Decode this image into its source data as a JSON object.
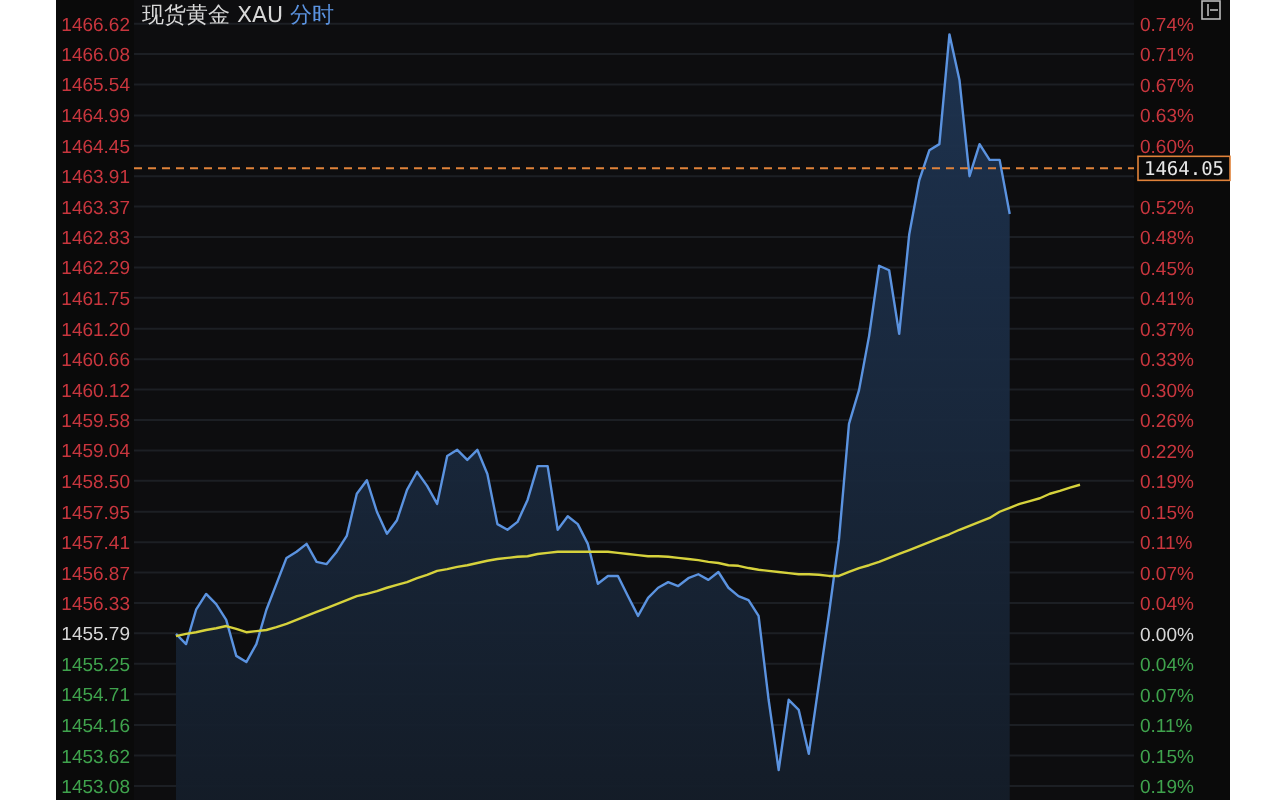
{
  "chart_data": {
    "type": "area",
    "title": "现货黄金 XAU 分时",
    "categories": [
      null,
      null,
      null,
      null,
      null,
      null,
      null,
      null,
      null,
      null,
      null,
      null,
      null,
      null,
      null,
      null,
      null,
      null,
      null,
      null,
      null,
      null,
      null,
      null,
      null,
      null,
      null,
      null,
      null,
      null,
      null,
      null,
      null,
      null,
      null,
      null,
      null,
      null,
      null,
      null,
      null,
      null,
      null,
      null,
      null,
      null,
      null,
      null,
      null,
      null,
      null,
      null,
      null,
      null,
      null,
      null,
      null,
      null,
      null,
      null,
      null,
      null,
      null,
      null,
      null,
      null,
      null,
      null,
      null,
      null,
      null,
      null,
      null,
      null,
      null,
      null,
      null,
      null,
      null,
      null,
      null,
      null,
      null,
      null,
      null,
      null,
      null,
      null,
      null,
      null,
      null
    ],
    "series": [
      {
        "color": "#5b93e0",
        "values": [
          1455.78,
          1455.6,
          1456.21,
          1456.49,
          1456.31,
          1456.03,
          1455.39,
          1455.28,
          1455.6,
          1456.21,
          1456.67,
          1457.13,
          1457.24,
          1457.38,
          1457.06,
          1457.02,
          1457.24,
          1457.52,
          1458.27,
          1458.51,
          1457.95,
          1457.56,
          1457.8,
          1458.34,
          1458.66,
          1458.41,
          1458.09,
          1458.94,
          1459.05,
          1458.87,
          1459.05,
          1458.62,
          1457.73,
          1457.63,
          1457.77,
          1458.16,
          1458.76,
          1458.76,
          1457.63,
          1457.87,
          1457.73,
          1457.38,
          1456.67,
          1456.81,
          1456.81,
          1456.45,
          1456.1,
          1456.42,
          1456.6,
          1456.7,
          1456.63,
          1456.77,
          1456.84,
          1456.74,
          1456.88,
          1456.6,
          1456.45,
          1456.38,
          1456.1,
          1454.61,
          1453.36,
          1454.61,
          1454.43,
          1453.65,
          1454.89,
          1456.13,
          1457.45,
          1459.51,
          1460.11,
          1461.07,
          1462.32,
          1462.24,
          1461.11,
          1462.88,
          1463.84,
          1464.37,
          1464.48,
          1466.43,
          1465.62,
          1463.91,
          1464.48,
          1464.2,
          1464.2,
          1463.24,
          null,
          null,
          null,
          null,
          null,
          null,
          null
        ]
      },
      {
        "type": "line",
        "color": "#d6d23c",
        "values": [
          1455.74,
          1455.78,
          1455.81,
          1455.85,
          1455.88,
          1455.92,
          1455.87,
          1455.81,
          1455.83,
          1455.85,
          1455.9,
          1455.96,
          1456.03,
          1456.1,
          1456.17,
          1456.24,
          1456.31,
          1456.38,
          1456.45,
          1456.49,
          1456.54,
          1456.6,
          1456.65,
          1456.7,
          1456.77,
          1456.83,
          1456.9,
          1456.93,
          1456.97,
          1457.0,
          1457.04,
          1457.08,
          1457.11,
          1457.13,
          1457.15,
          1457.16,
          1457.2,
          1457.22,
          1457.24,
          1457.24,
          1457.24,
          1457.24,
          1457.24,
          1457.24,
          1457.22,
          1457.2,
          1457.18,
          1457.16,
          1457.16,
          1457.15,
          1457.13,
          1457.11,
          1457.09,
          1457.06,
          1457.04,
          1457.0,
          1456.99,
          1456.95,
          1456.92,
          1456.9,
          1456.88,
          1456.86,
          1456.84,
          1456.84,
          1456.83,
          1456.81,
          1456.81,
          1456.88,
          1456.95,
          1457.0,
          1457.06,
          1457.13,
          1457.2,
          1457.27,
          1457.34,
          1457.41,
          1457.48,
          1457.55,
          1457.63,
          1457.7,
          1457.77,
          1457.84,
          1457.95,
          1458.02,
          1458.09,
          1458.14,
          1458.19,
          1458.27,
          1458.32,
          1458.38,
          1458.43
        ]
      }
    ],
    "ylim": [
      1452.83,
      1467.04
    ],
    "yticks": [
      1466.62,
      1466.08,
      1465.54,
      1464.99,
      1464.45,
      1463.91,
      1463.37,
      1462.83,
      1462.29,
      1461.75,
      {
        "value": 1461.2,
        "label": "1461.20"
      },
      1460.66,
      1460.12,
      1459.58,
      1459.04,
      {
        "value": 1458.5,
        "label": "1458.50"
      },
      1457.95,
      1457.41,
      1456.87,
      1456.33,
      1455.79,
      1455.25,
      1454.71,
      1454.16,
      1453.62,
      1453.08
    ],
    "y2lim": [
      -0.203,
      0.773
    ],
    "y2ticks": [
      {
        "value": 0.7439,
        "label": "0.74%"
      },
      {
        "value": 0.7067,
        "label": "0.71%"
      },
      {
        "value": 0.6695,
        "label": "0.67%"
      },
      {
        "value": 0.6324,
        "label": "0.63%"
      },
      {
        "value": 0.5952,
        "label": "0.60%"
      },
      {
        "value": 0.5208,
        "label": "0.52%"
      },
      {
        "value": 0.4836,
        "label": "0.48%"
      },
      {
        "value": 0.4464,
        "label": "0.45%"
      },
      {
        "value": 0.4092,
        "label": "0.41%"
      },
      {
        "value": 0.372,
        "label": "0.37%"
      },
      {
        "value": 0.3348,
        "label": "0.33%"
      },
      {
        "value": 0.2976,
        "label": "0.30%"
      },
      {
        "value": 0.2604,
        "label": "0.26%"
      },
      {
        "value": 0.2232,
        "label": "0.22%"
      },
      {
        "value": 0.186,
        "label": "0.19%"
      },
      {
        "value": 0.1488,
        "label": "0.15%"
      },
      {
        "value": 0.1116,
        "label": "0.11%"
      },
      {
        "value": 0.0744,
        "label": "0.07%"
      },
      {
        "value": 0.0372,
        "label": "0.04%"
      },
      {
        "value": 0,
        "label": "0.00%"
      },
      {
        "value": -0.0372,
        "label": "0.04%"
      },
      {
        "value": -0.0744,
        "label": "0.07%"
      },
      {
        "value": -0.1116,
        "label": "0.11%"
      },
      {
        "value": -0.1488,
        "label": "0.15%"
      },
      {
        "value": -0.186,
        "label": "0.19%"
      }
    ],
    "ref_lines": [
      {
        "axis": "y",
        "value": 1464.05,
        "label": "1464.05",
        "color": "#e0823a",
        "line_style": "dashed"
      }
    ],
    "grid": "y"
  }
}
